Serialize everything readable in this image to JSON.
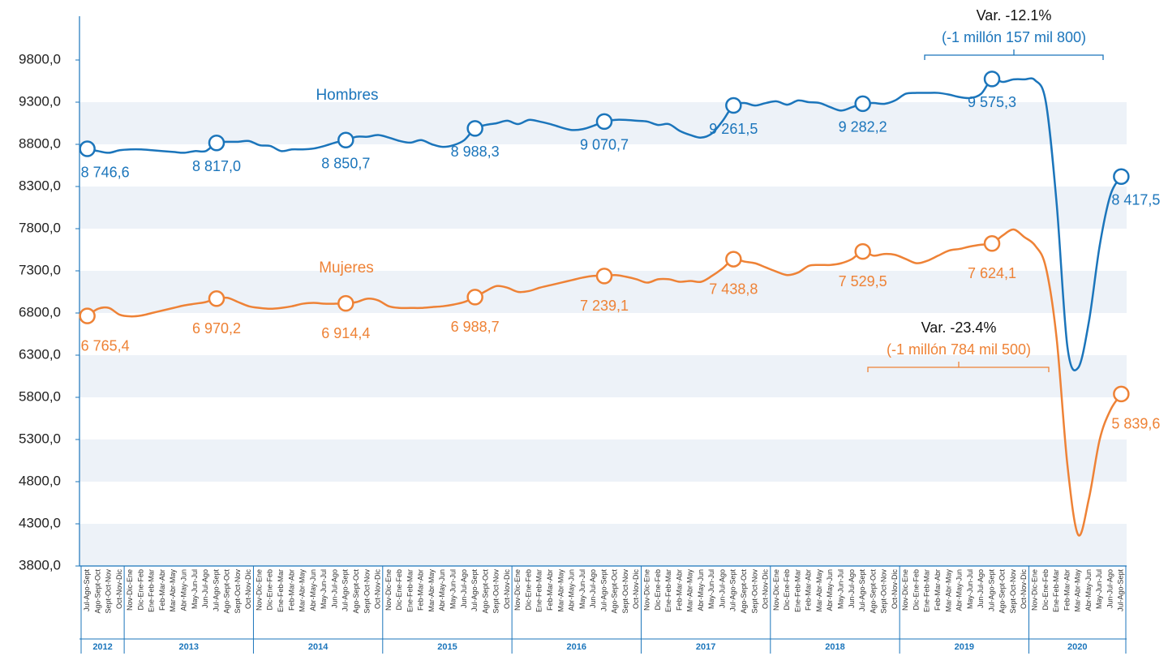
{
  "chart_data": {
    "type": "line",
    "ylim": [
      3800,
      10300
    ],
    "yticks": [
      {
        "value": 3800,
        "label": "3800,0"
      },
      {
        "value": 4300,
        "label": "4300,0"
      },
      {
        "value": 4800,
        "label": "4800,0"
      },
      {
        "value": 5300,
        "label": "5300,0"
      },
      {
        "value": 5800,
        "label": "5800,0"
      },
      {
        "value": 6300,
        "label": "6300,0"
      },
      {
        "value": 6800,
        "label": "6800,0"
      },
      {
        "value": 7300,
        "label": "7300,0"
      },
      {
        "value": 7800,
        "label": "7800,0"
      },
      {
        "value": 8300,
        "label": "8300,0"
      },
      {
        "value": 8800,
        "label": "8800,0"
      },
      {
        "value": 9300,
        "label": "9300,0"
      },
      {
        "value": 9800,
        "label": "9800,0"
      }
    ],
    "grid": "bands",
    "category_groups": [
      {
        "label": "2012",
        "categories": [
          "Jul-Ago-Sept",
          "Ago-Sept-Oct",
          "Sept-Oct-Nov",
          "Oct-Nov-Dic"
        ]
      },
      {
        "label": "2013",
        "categories": [
          "Nov-Dic-Ene",
          "Dic-Ene-Feb",
          "Ene-Feb-Mar",
          "Feb-Mar-Abr",
          "Mar-Abr-May",
          "Abr-May-Jun",
          "May-Jun-Jul",
          "Jun-Jul-Ago",
          "Jul-Ago-Sept",
          "Ago-Sept-Oct",
          "Sept-Oct-Nov",
          "Oct-Nov-Dic"
        ]
      },
      {
        "label": "2014",
        "categories": [
          "Nov-Dic-Ene",
          "Dic-Ene-Feb",
          "Ene-Feb-Mar",
          "Feb-Mar-Abr",
          "Mar-Abr-May",
          "Abr-May-Jun",
          "May-Jun-Jul",
          "Jun-Jul-Ago",
          "Jul-Ago-Sept",
          "Ago-Sept-Oct",
          "Sept-Oct-Nov",
          "Oct-Nov-Dic"
        ]
      },
      {
        "label": "2015",
        "categories": [
          "Nov-Dic-Ene",
          "Dic-Ene-Feb",
          "Ene-Feb-Mar",
          "Feb-Mar-Abr",
          "Mar-Abr-May",
          "Abr-May-Jun",
          "May-Jun-Jul",
          "Jun-Jul-Ago",
          "Jul-Ago-Sept",
          "Ago-Sept-Oct",
          "Sept-Oct-Nov",
          "Oct-Nov-Dic"
        ]
      },
      {
        "label": "2016",
        "categories": [
          "Nov-Dic-Ene",
          "Dic-Ene-Feb",
          "Ene-Feb-Mar",
          "Feb-Mar-Abr",
          "Mar-Abr-May",
          "Abr-May-Jun",
          "May-Jun-Jul",
          "Jun-Jul-Ago",
          "Jul-Ago-Sept",
          "Ago-Sept-Oct",
          "Sept-Oct-Nov",
          "Oct-Nov-Dic"
        ]
      },
      {
        "label": "2017",
        "categories": [
          "Nov-Dic-Ene",
          "Dic-Ene-Feb",
          "Ene-Feb-Mar",
          "Feb-Mar-Abr",
          "Mar-Abr-May",
          "Abr-May-Jun",
          "May-Jun-Jul",
          "Jun-Jul-Ago",
          "Jul-Ago-Sept",
          "Ago-Sept-Oct",
          "Sept-Oct-Nov",
          "Oct-Nov-Dic"
        ]
      },
      {
        "label": "2018",
        "categories": [
          "Nov-Dic-Ene",
          "Dic-Ene-Feb",
          "Ene-Feb-Mar",
          "Feb-Mar-Abr",
          "Mar-Abr-May",
          "Abr-May-Jun",
          "May-Jun-Jul",
          "Jun-Jul-Ago",
          "Jul-Ago-Sept",
          "Ago-Sept-Oct",
          "Sept-Oct-Nov",
          "Oct-Nov-Dic"
        ]
      },
      {
        "label": "2019",
        "categories": [
          "Nov-Dic-Ene",
          "Dic-Ene-Feb",
          "Ene-Feb-Mar",
          "Feb-Mar-Abr",
          "Mar-Abr-May",
          "Abr-May-Jun",
          "May-Jun-Jul",
          "Jun-Jul-Ago",
          "Jul-Ago-Sept",
          "Ago-Sept-Oct",
          "Sept-Oct-Nov",
          "Oct-Nov-Dic"
        ]
      },
      {
        "label": "2020",
        "categories": [
          "Nov-Dic-Ene",
          "Dic-Ene-Feb",
          "Ene-Feb-Mar",
          "Feb-Mar-Abr",
          "Mar-Abr-May",
          "Abr-May-Jun",
          "May-Jun-Jul",
          "Jun-Jul-Ago",
          "Jul-Ago-Sept"
        ]
      }
    ],
    "series": [
      {
        "name": "Hombres",
        "color": "#1b75bb",
        "values": [
          8746.6,
          8720,
          8700,
          8730,
          8740,
          8740,
          8730,
          8720,
          8710,
          8700,
          8720,
          8720,
          8817.0,
          8830,
          8830,
          8840,
          8790,
          8780,
          8720,
          8740,
          8740,
          8750,
          8780,
          8820,
          8850.7,
          8890,
          8890,
          8910,
          8880,
          8840,
          8820,
          8850,
          8800,
          8770,
          8790,
          8850,
          8988.3,
          9030,
          9050,
          9080,
          9040,
          9090,
          9070,
          9040,
          9000,
          8970,
          8980,
          9020,
          9070.7,
          9090,
          9090,
          9080,
          9070,
          9030,
          9040,
          8960,
          8910,
          8880,
          8930,
          9080,
          9261.5,
          9290,
          9260,
          9290,
          9310,
          9270,
          9320,
          9300,
          9290,
          9240,
          9200,
          9240,
          9282.2,
          9290,
          9280,
          9320,
          9400,
          9410,
          9410,
          9410,
          9390,
          9360,
          9350,
          9400,
          9575.3,
          9540,
          9570,
          9570,
          9560,
          9300,
          8100,
          6400,
          6150,
          6700,
          7600,
          8200,
          8417.5
        ],
        "value_labels": [
          "8 746,6",
          null,
          null,
          null,
          null,
          null,
          null,
          null,
          null,
          null,
          null,
          null,
          "8 817,0",
          null,
          null,
          null,
          null,
          null,
          null,
          null,
          null,
          null,
          null,
          null,
          "8 850,7",
          null,
          null,
          null,
          null,
          null,
          null,
          null,
          null,
          null,
          null,
          null,
          "8 988,3",
          null,
          null,
          null,
          null,
          null,
          null,
          null,
          null,
          null,
          null,
          null,
          "9 070,7",
          null,
          null,
          null,
          null,
          null,
          null,
          null,
          null,
          null,
          null,
          null,
          "9 261,5",
          null,
          null,
          null,
          null,
          null,
          null,
          null,
          null,
          null,
          null,
          null,
          "9 282,2",
          null,
          null,
          null,
          null,
          null,
          null,
          null,
          null,
          null,
          null,
          null,
          "9 575,3",
          null,
          null,
          null,
          null,
          null,
          null,
          null,
          null,
          null,
          null,
          null,
          "8 417,5"
        ]
      },
      {
        "name": "Mujeres",
        "color": "#ee8236",
        "values": [
          6765.4,
          6850,
          6860,
          6780,
          6760,
          6770,
          6800,
          6830,
          6860,
          6890,
          6910,
          6930,
          6970.2,
          6980,
          6930,
          6880,
          6860,
          6850,
          6860,
          6880,
          6910,
          6920,
          6910,
          6910,
          6914.4,
          6930,
          6970,
          6950,
          6880,
          6860,
          6860,
          6860,
          6870,
          6880,
          6900,
          6930,
          6988.7,
          7060,
          7120,
          7100,
          7050,
          7060,
          7100,
          7130,
          7160,
          7190,
          7220,
          7240,
          7239.1,
          7250,
          7230,
          7200,
          7160,
          7200,
          7200,
          7170,
          7180,
          7170,
          7240,
          7330,
          7438.8,
          7410,
          7390,
          7340,
          7290,
          7250,
          7280,
          7360,
          7370,
          7370,
          7390,
          7440,
          7529.5,
          7480,
          7500,
          7490,
          7440,
          7390,
          7420,
          7480,
          7540,
          7560,
          7590,
          7610,
          7624.1,
          7720,
          7790,
          7700,
          7600,
          7340,
          6500,
          5000,
          4170,
          4600,
          5300,
          5650,
          5839.6
        ],
        "value_labels": [
          "6 765,4",
          null,
          null,
          null,
          null,
          null,
          null,
          null,
          null,
          null,
          null,
          null,
          "6 970,2",
          null,
          null,
          null,
          null,
          null,
          null,
          null,
          null,
          null,
          null,
          null,
          "6 914,4",
          null,
          null,
          null,
          null,
          null,
          null,
          null,
          null,
          null,
          null,
          null,
          "6 988,7",
          null,
          null,
          null,
          null,
          null,
          null,
          null,
          null,
          null,
          null,
          null,
          "7 239,1",
          null,
          null,
          null,
          null,
          null,
          null,
          null,
          null,
          null,
          null,
          null,
          "7 438,8",
          null,
          null,
          null,
          null,
          null,
          null,
          null,
          null,
          null,
          null,
          null,
          "7 529,5",
          null,
          null,
          null,
          null,
          null,
          null,
          null,
          null,
          null,
          null,
          null,
          "7 624,1",
          null,
          null,
          null,
          null,
          null,
          null,
          null,
          null,
          null,
          null,
          null,
          "5 839,6"
        ]
      }
    ],
    "annotations": [
      {
        "title": "Var. -12.1%",
        "detail": "(-1 millón 157 mil 800)"
      },
      {
        "title": "Var. -23.4%",
        "detail": "(-1 millón 784 mil 500)"
      }
    ]
  }
}
